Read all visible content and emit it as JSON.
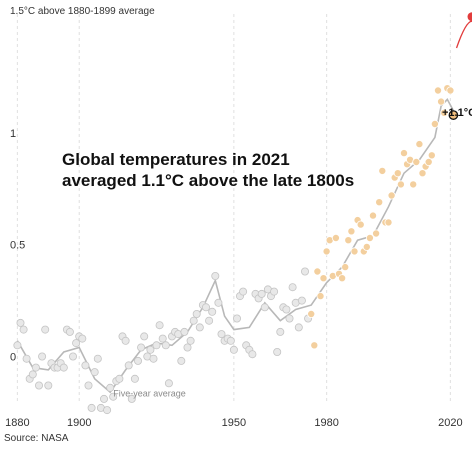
{
  "headline": "Global temperatures in 2021 averaged 1.1°C above the late 1800s",
  "source": "Source: NASA",
  "annotation_2021": "+1.1°C",
  "colors": {
    "dot_early": "#e8e8e8",
    "dot_late": "#f3cf9e",
    "highlight": "#f2bf7f",
    "line": "#b8b8b8",
    "arrow": "#e23c3c",
    "grid": "#e0e0e0"
  },
  "chart_data": {
    "type": "scatter",
    "title": "",
    "ytop_label": "1.5°C above 1880-1899 average",
    "xlabel": "",
    "ylabel": "",
    "xlim": [
      1876,
      2027
    ],
    "ylim": [
      -0.32,
      1.55
    ],
    "xticks": [
      1880,
      1900,
      1950,
      1980,
      2020
    ],
    "yticks": [
      {
        "value": 1,
        "label": "1"
      },
      {
        "value": 0.5,
        "label": "0.5"
      },
      {
        "value": 0,
        "label": "0"
      }
    ],
    "grid": "vertical",
    "series": [
      {
        "name": "",
        "kind": "annual",
        "x": [
          1880,
          1881,
          1882,
          1883,
          1884,
          1885,
          1886,
          1887,
          1888,
          1889,
          1890,
          1891,
          1892,
          1893,
          1894,
          1895,
          1896,
          1897,
          1898,
          1899,
          1900,
          1901,
          1902,
          1903,
          1904,
          1905,
          1906,
          1907,
          1908,
          1909,
          1910,
          1911,
          1912,
          1913,
          1914,
          1915,
          1916,
          1917,
          1918,
          1919,
          1920,
          1921,
          1922,
          1923,
          1924,
          1925,
          1926,
          1927,
          1928,
          1929,
          1930,
          1931,
          1932,
          1933,
          1934,
          1935,
          1936,
          1937,
          1938,
          1939,
          1940,
          1941,
          1942,
          1943,
          1944,
          1945,
          1946,
          1947,
          1948,
          1949,
          1950,
          1951,
          1952,
          1953,
          1954,
          1955,
          1956,
          1957,
          1958,
          1959,
          1960,
          1961,
          1962,
          1963,
          1964,
          1965,
          1966,
          1967,
          1968,
          1969,
          1970,
          1971,
          1972,
          1973,
          1974,
          1975,
          1976,
          1977,
          1978,
          1979,
          1980,
          1981,
          1982,
          1983,
          1984,
          1985,
          1986,
          1987,
          1988,
          1989,
          1990,
          1991,
          1992,
          1993,
          1994,
          1995,
          1996,
          1997,
          1998,
          1999,
          2000,
          2001,
          2002,
          2003,
          2004,
          2005,
          2006,
          2007,
          2008,
          2009,
          2010,
          2011,
          2012,
          2013,
          2014,
          2015,
          2016,
          2017,
          2018,
          2019,
          2020,
          2021
        ],
        "y": [
          0.05,
          0.15,
          0.12,
          -0.01,
          -0.1,
          -0.08,
          -0.05,
          -0.13,
          0.0,
          0.12,
          -0.13,
          -0.03,
          -0.05,
          -0.05,
          -0.03,
          -0.05,
          0.12,
          0.11,
          0.0,
          0.06,
          0.09,
          0.08,
          -0.04,
          -0.13,
          -0.23,
          -0.07,
          -0.01,
          -0.23,
          -0.19,
          -0.24,
          -0.14,
          -0.18,
          -0.11,
          -0.1,
          0.09,
          0.07,
          -0.04,
          -0.19,
          -0.1,
          -0.02,
          0.04,
          0.09,
          0.0,
          0.03,
          -0.01,
          0.05,
          0.14,
          0.08,
          0.05,
          -0.12,
          0.09,
          0.11,
          0.1,
          -0.02,
          0.11,
          0.04,
          0.07,
          0.16,
          0.19,
          0.13,
          0.23,
          0.22,
          0.16,
          0.2,
          0.36,
          0.24,
          0.1,
          0.07,
          0.08,
          0.07,
          0.03,
          0.17,
          0.27,
          0.29,
          0.05,
          0.03,
          0.01,
          0.28,
          0.26,
          0.28,
          0.22,
          0.3,
          0.27,
          0.29,
          0.02,
          0.11,
          0.22,
          0.21,
          0.17,
          0.31,
          0.24,
          0.13,
          0.25,
          0.38,
          0.17,
          0.19,
          0.05,
          0.38,
          0.27,
          0.35,
          0.47,
          0.52,
          0.36,
          0.53,
          0.37,
          0.35,
          0.4,
          0.52,
          0.56,
          0.47,
          0.61,
          0.59,
          0.47,
          0.49,
          0.53,
          0.63,
          0.55,
          0.69,
          0.83,
          0.6,
          0.6,
          0.72,
          0.8,
          0.82,
          0.77,
          0.91,
          0.86,
          0.88,
          0.77,
          0.87,
          0.95,
          0.82,
          0.85,
          0.87,
          0.9,
          1.04,
          1.19,
          1.14,
          1.09,
          1.2,
          1.19,
          1.08
        ]
      },
      {
        "name": "Five-year average",
        "kind": "smooth",
        "x": [
          1880,
          1885,
          1890,
          1895,
          1900,
          1905,
          1910,
          1915,
          1920,
          1925,
          1930,
          1935,
          1940,
          1944,
          1947,
          1950,
          1955,
          1960,
          1965,
          1970,
          1975,
          1980,
          1985,
          1990,
          1995,
          2000,
          2005,
          2010,
          2015,
          2017,
          2019,
          2021
        ],
        "y": [
          0.07,
          -0.05,
          -0.06,
          0.02,
          0.04,
          -0.1,
          -0.16,
          -0.06,
          0.03,
          0.06,
          0.05,
          0.11,
          0.22,
          0.34,
          0.18,
          0.12,
          0.13,
          0.24,
          0.16,
          0.21,
          0.23,
          0.33,
          0.4,
          0.52,
          0.54,
          0.67,
          0.82,
          0.88,
          0.98,
          1.12,
          1.15,
          1.1
        ]
      }
    ],
    "annotations": [
      {
        "x": 2021,
        "y": 1.1,
        "label": "+1.1°C"
      }
    ],
    "arrow": {
      "from": [
        2022,
        1.38
      ],
      "to": [
        2027,
        1.52
      ]
    }
  }
}
